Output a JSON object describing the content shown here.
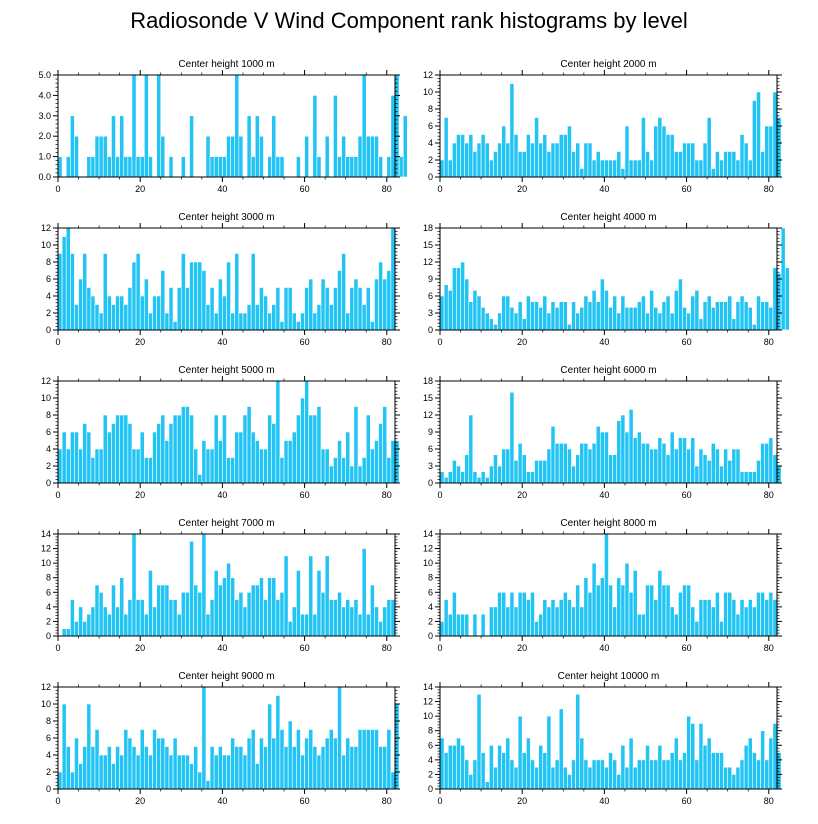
{
  "title": "Radiosonde V Wind Component rank histograms by level",
  "colors": {
    "bar": "#22c4f4",
    "axis": "#000000",
    "bar_edge": "#ffffff"
  },
  "chart_data": [
    {
      "type": "bar",
      "title": "Center height 1000 m",
      "xlim": [
        0,
        82
      ],
      "ylim": [
        0,
        5
      ],
      "yticks": [
        0,
        1,
        2,
        3,
        4,
        5
      ],
      "ytick_labels": [
        "0.0",
        "1.0",
        "2.0",
        "3.0",
        "4.0",
        "5.0"
      ],
      "xticks": [
        0,
        20,
        40,
        60,
        80
      ],
      "values": [
        1,
        0,
        1,
        3,
        2,
        0,
        0,
        1,
        1,
        2,
        2,
        2,
        1,
        3,
        1,
        3,
        1,
        1,
        5,
        1,
        1,
        5,
        1,
        0,
        5,
        2,
        0,
        1,
        0,
        0,
        1,
        0,
        3,
        0,
        0,
        0,
        2,
        1,
        1,
        1,
        1,
        2,
        2,
        5,
        2,
        0,
        3,
        1,
        3,
        2,
        0,
        1,
        3,
        1,
        1,
        0,
        0,
        0,
        1,
        0,
        2,
        0,
        4,
        1,
        0,
        2,
        0,
        4,
        1,
        2,
        1,
        1,
        1,
        2,
        5,
        2,
        2,
        2,
        1,
        0,
        1,
        4,
        5,
        1,
        3
      ]
    },
    {
      "type": "bar",
      "title": "Center height 2000 m",
      "xlim": [
        0,
        82
      ],
      "ylim": [
        0,
        12
      ],
      "yticks": [
        0,
        2,
        4,
        6,
        8,
        10,
        12
      ],
      "ytick_labels": [
        "0",
        "2",
        "4",
        "6",
        "8",
        "10",
        "12"
      ],
      "xticks": [
        0,
        20,
        40,
        60,
        80
      ],
      "values": [
        2,
        7,
        2,
        4,
        5,
        5,
        4,
        5,
        3,
        4,
        5,
        4,
        2,
        3,
        4,
        6,
        4,
        11,
        5,
        3,
        3,
        5,
        4,
        7,
        4,
        5,
        3,
        4,
        4,
        5,
        5,
        6,
        3,
        4,
        1,
        4,
        4,
        2,
        3,
        2,
        2,
        2,
        2,
        3,
        1,
        6,
        2,
        2,
        2,
        7,
        3,
        2,
        6,
        7,
        6,
        5,
        5,
        3,
        3,
        4,
        4,
        4,
        2,
        2,
        4,
        7,
        1,
        3,
        2,
        3,
        3,
        3,
        2,
        5,
        4,
        2,
        9,
        10,
        3,
        6,
        6,
        10,
        7
      ]
    },
    {
      "type": "bar",
      "title": "Center height 3000 m",
      "xlim": [
        0,
        82
      ],
      "ylim": [
        0,
        12
      ],
      "yticks": [
        0,
        2,
        4,
        6,
        8,
        10,
        12
      ],
      "ytick_labels": [
        "0",
        "2",
        "4",
        "6",
        "8",
        "10",
        "12"
      ],
      "xticks": [
        0,
        20,
        40,
        60,
        80
      ],
      "values": [
        9,
        11,
        12,
        9,
        3,
        6,
        9,
        5,
        4,
        3,
        2,
        9,
        4,
        3,
        4,
        4,
        3,
        5,
        8,
        9,
        4,
        6,
        2,
        4,
        4,
        7,
        2,
        5,
        1,
        5,
        9,
        5,
        8,
        8,
        8,
        7,
        3,
        5,
        2,
        6,
        4,
        8,
        2,
        9,
        2,
        2,
        3,
        9,
        3,
        5,
        4,
        2,
        3,
        5,
        1,
        5,
        5,
        2,
        1,
        2,
        5,
        6,
        2,
        3,
        6,
        5,
        3,
        5,
        7,
        9,
        2,
        5,
        6,
        5,
        3,
        5,
        1,
        6,
        8,
        6,
        7,
        12
      ]
    },
    {
      "type": "bar",
      "title": "Center height 4000 m",
      "xlim": [
        0,
        82
      ],
      "ylim": [
        0,
        18
      ],
      "yticks": [
        0,
        3,
        6,
        9,
        12,
        15,
        18
      ],
      "ytick_labels": [
        "0",
        "3",
        "6",
        "9",
        "12",
        "15",
        "18"
      ],
      "xticks": [
        0,
        20,
        40,
        60,
        80
      ],
      "values": [
        6,
        8,
        7,
        11,
        11,
        12,
        9,
        5,
        7,
        6,
        4,
        3,
        2,
        1,
        3,
        6,
        6,
        4,
        3,
        5,
        2,
        6,
        5,
        5,
        4,
        6,
        3,
        5,
        4,
        5,
        5,
        1,
        5,
        3,
        4,
        6,
        5,
        7,
        5,
        9,
        7,
        4,
        6,
        3,
        6,
        4,
        4,
        4,
        5,
        6,
        3,
        7,
        4,
        3,
        5,
        6,
        3,
        7,
        9,
        4,
        3,
        6,
        7,
        2,
        5,
        6,
        4,
        5,
        5,
        5,
        6,
        2,
        5,
        6,
        5,
        4,
        1,
        6,
        5,
        5,
        4,
        11,
        10,
        18,
        11
      ]
    },
    {
      "type": "bar",
      "title": "Center height 5000 m",
      "xlim": [
        0,
        82
      ],
      "ylim": [
        0,
        12
      ],
      "yticks": [
        0,
        2,
        4,
        6,
        8,
        10,
        12
      ],
      "ytick_labels": [
        "0",
        "2",
        "4",
        "6",
        "8",
        "10",
        "12"
      ],
      "xticks": [
        0,
        20,
        40,
        60,
        80
      ],
      "values": [
        4,
        6,
        4,
        6,
        6,
        4,
        7,
        6,
        3,
        4,
        4,
        8,
        6,
        7,
        8,
        8,
        8,
        7,
        4,
        4,
        6,
        3,
        3,
        6,
        7,
        8,
        5,
        7,
        8,
        8,
        9,
        9,
        8,
        4,
        1,
        5,
        4,
        4,
        8,
        5,
        8,
        3,
        3,
        6,
        6,
        8,
        9,
        6,
        5,
        4,
        4,
        8,
        7,
        12,
        3,
        5,
        5,
        6,
        8,
        10,
        12,
        8,
        8,
        9,
        4,
        4,
        2,
        3,
        5,
        3,
        6,
        2,
        9,
        2,
        3,
        8,
        4,
        5,
        7,
        9,
        3,
        5,
        5
      ]
    },
    {
      "type": "bar",
      "title": "Center height 6000 m",
      "xlim": [
        0,
        82
      ],
      "ylim": [
        0,
        18
      ],
      "yticks": [
        0,
        3,
        6,
        9,
        12,
        15,
        18
      ],
      "ytick_labels": [
        "0",
        "3",
        "6",
        "9",
        "12",
        "15",
        "18"
      ],
      "xticks": [
        0,
        20,
        40,
        60,
        80
      ],
      "values": [
        2,
        1,
        2,
        4,
        3,
        2,
        5,
        12,
        2,
        1,
        2,
        1,
        3,
        5,
        3,
        6,
        6,
        16,
        4,
        7,
        5,
        2,
        2,
        4,
        4,
        4,
        6,
        10,
        7,
        7,
        7,
        6,
        3,
        5,
        7,
        7,
        6,
        7,
        10,
        9,
        9,
        5,
        5,
        11,
        12,
        9,
        13,
        8,
        9,
        7,
        7,
        6,
        6,
        8,
        7,
        5,
        9,
        6,
        8,
        8,
        6,
        8,
        3,
        6,
        5,
        4,
        7,
        6,
        3,
        6,
        4,
        6,
        6,
        2,
        2,
        2,
        2,
        4,
        7,
        7,
        8,
        5,
        3
      ]
    },
    {
      "type": "bar",
      "title": "Center height 7000 m",
      "xlim": [
        0,
        82
      ],
      "ylim": [
        0,
        14
      ],
      "yticks": [
        0,
        2,
        4,
        6,
        8,
        10,
        12,
        14
      ],
      "ytick_labels": [
        "0",
        "2",
        "4",
        "6",
        "8",
        "10",
        "12",
        "14"
      ],
      "xticks": [
        0,
        20,
        40,
        60,
        80
      ],
      "values": [
        0,
        1,
        1,
        5,
        2,
        4,
        2,
        3,
        4,
        7,
        6,
        4,
        3,
        7,
        4,
        8,
        3,
        5,
        14,
        5,
        5,
        3,
        9,
        4,
        7,
        7,
        7,
        5,
        5,
        3,
        6,
        6,
        13,
        7,
        6,
        14,
        3,
        5,
        9,
        7,
        8,
        10,
        8,
        5,
        6,
        4,
        6,
        7,
        7,
        8,
        5,
        8,
        8,
        5,
        6,
        11,
        2,
        4,
        9,
        3,
        3,
        11,
        3,
        9,
        6,
        11,
        5,
        5,
        6,
        4,
        5,
        4,
        5,
        3,
        12,
        3,
        7,
        4,
        2,
        4,
        5,
        5
      ]
    },
    {
      "type": "bar",
      "title": "Center height 8000 m",
      "xlim": [
        0,
        82
      ],
      "ylim": [
        0,
        14
      ],
      "yticks": [
        0,
        2,
        4,
        6,
        8,
        10,
        12,
        14
      ],
      "ytick_labels": [
        "0",
        "2",
        "4",
        "6",
        "8",
        "10",
        "12",
        "14"
      ],
      "xticks": [
        0,
        20,
        40,
        60,
        80
      ],
      "values": [
        2,
        5,
        3,
        6,
        3,
        3,
        3,
        0,
        3,
        0,
        3,
        0,
        4,
        4,
        6,
        6,
        4,
        6,
        4,
        6,
        6,
        5,
        6,
        2,
        3,
        5,
        4,
        5,
        4,
        5,
        6,
        5,
        4,
        7,
        4,
        8,
        6,
        10,
        7,
        8,
        14,
        7,
        4,
        8,
        7,
        10,
        6,
        9,
        3,
        3,
        7,
        7,
        5,
        9,
        7,
        7,
        4,
        3,
        6,
        7,
        7,
        4,
        2,
        5,
        5,
        5,
        4,
        6,
        2,
        6,
        6,
        5,
        3,
        5,
        4,
        5,
        4,
        6,
        6,
        5,
        6,
        5
      ]
    },
    {
      "type": "bar",
      "title": "Center height 9000 m",
      "xlim": [
        0,
        82
      ],
      "ylim": [
        0,
        12
      ],
      "yticks": [
        0,
        2,
        4,
        6,
        8,
        10,
        12
      ],
      "ytick_labels": [
        "0",
        "2",
        "4",
        "6",
        "8",
        "10",
        "12"
      ],
      "xticks": [
        0,
        20,
        40,
        60,
        80
      ],
      "values": [
        2,
        10,
        5,
        2,
        6,
        3,
        5,
        10,
        5,
        7,
        4,
        4,
        5,
        3,
        5,
        4,
        7,
        6,
        5,
        4,
        7,
        5,
        4,
        7,
        6,
        6,
        5,
        4,
        6,
        4,
        4,
        4,
        3,
        5,
        2,
        12,
        1,
        5,
        4,
        5,
        4,
        4,
        6,
        5,
        5,
        4,
        6,
        7,
        3,
        6,
        5,
        10,
        6,
        11,
        7,
        5,
        8,
        5,
        7,
        4,
        6,
        7,
        5,
        4,
        5,
        6,
        7,
        6,
        12,
        4,
        6,
        5,
        5,
        7,
        7,
        7,
        7,
        7,
        5,
        5,
        7,
        2,
        10
      ]
    },
    {
      "type": "bar",
      "title": "Center height 10000 m",
      "xlim": [
        0,
        82
      ],
      "ylim": [
        0,
        14
      ],
      "yticks": [
        0,
        2,
        4,
        6,
        8,
        10,
        12,
        14
      ],
      "ytick_labels": [
        "0",
        "2",
        "4",
        "6",
        "8",
        "10",
        "12",
        "14"
      ],
      "xticks": [
        0,
        20,
        40,
        60,
        80
      ],
      "values": [
        7,
        5,
        6,
        6,
        7,
        6,
        4,
        2,
        4,
        13,
        5,
        1,
        6,
        3,
        6,
        5,
        7,
        4,
        3,
        10,
        5,
        7,
        4,
        3,
        6,
        5,
        10,
        3,
        4,
        11,
        3,
        2,
        4,
        13,
        7,
        4,
        3,
        4,
        4,
        4,
        3,
        5,
        4,
        2,
        6,
        3,
        7,
        3,
        4,
        4,
        6,
        4,
        4,
        6,
        4,
        4,
        5,
        7,
        4,
        5,
        10,
        9,
        4,
        9,
        6,
        7,
        5,
        5,
        5,
        3,
        3,
        2,
        3,
        4,
        6,
        7,
        5,
        4,
        8,
        4,
        7,
        9,
        5
      ]
    }
  ]
}
